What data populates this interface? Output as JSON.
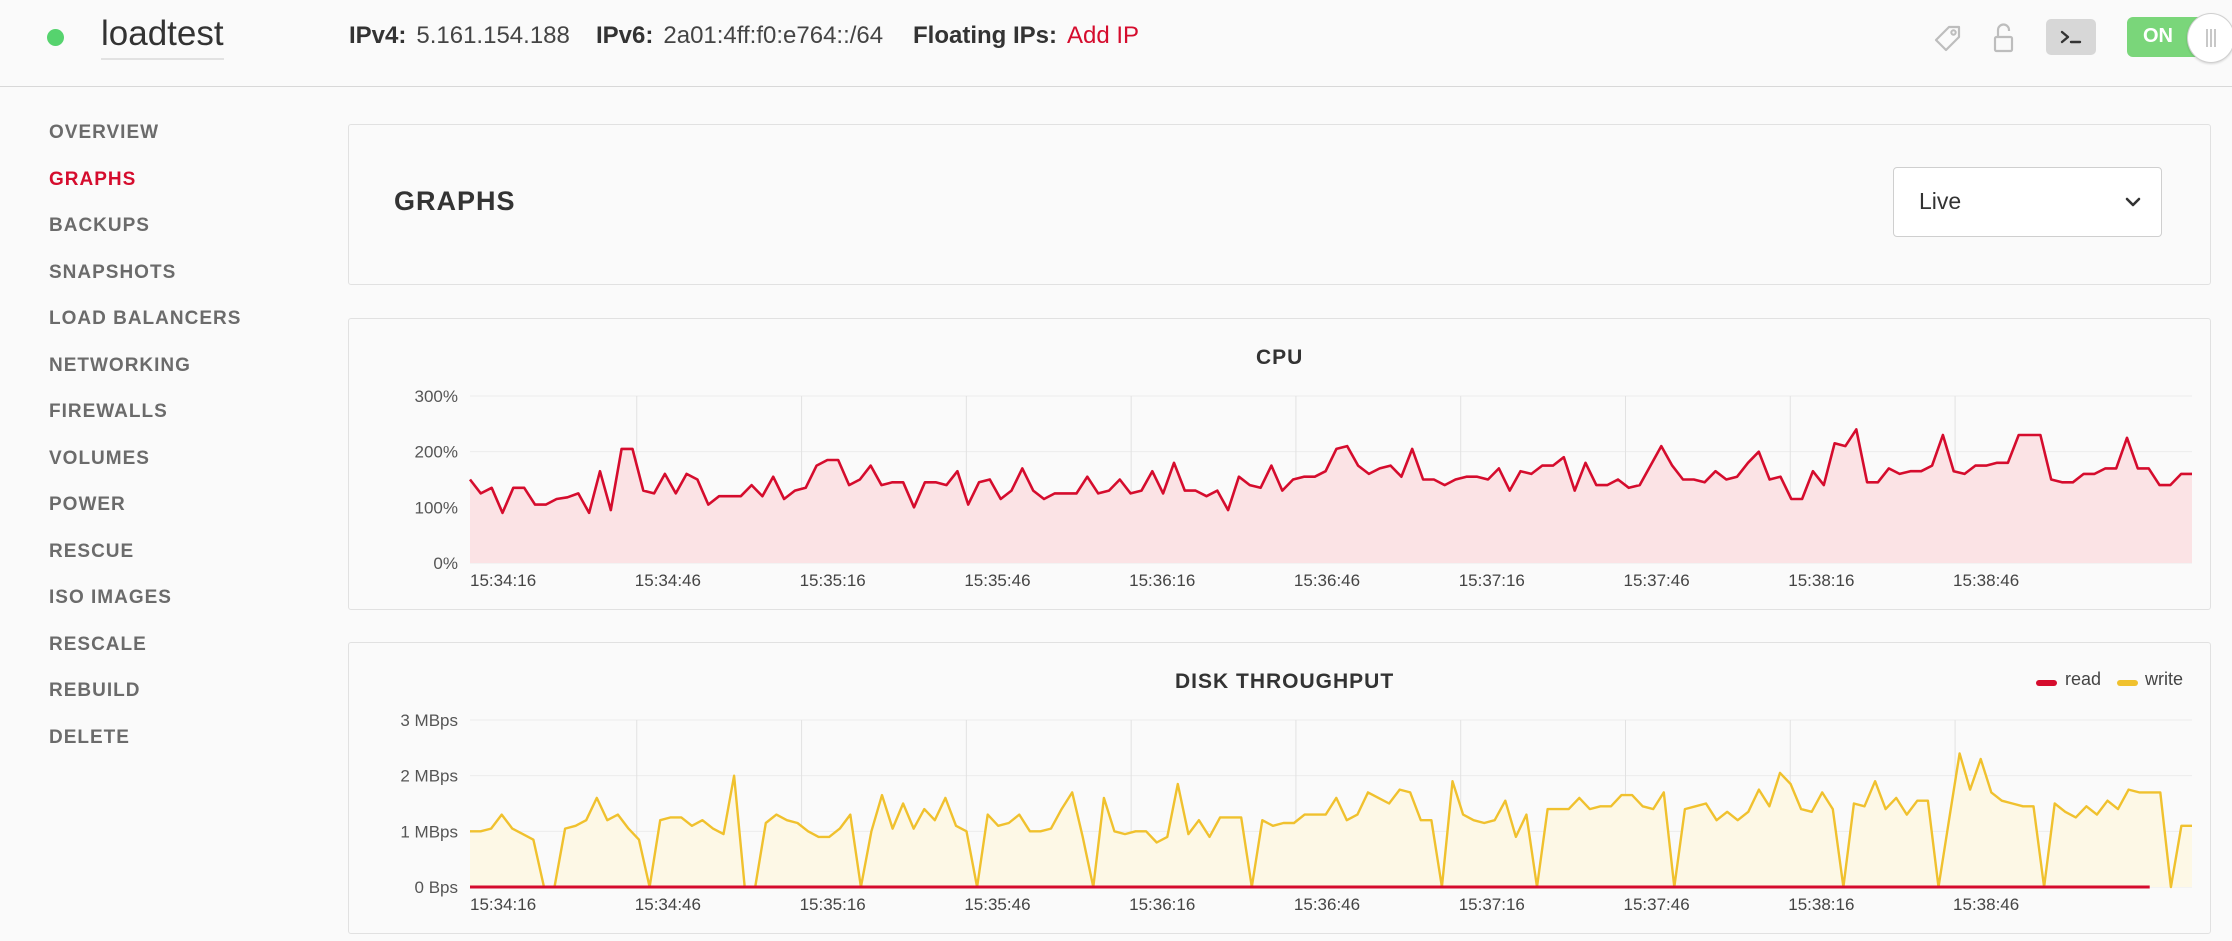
{
  "header": {
    "server_name": "loadtest",
    "status_color": "#56d36e",
    "ipv4_label": "IPv4:",
    "ipv4_value": "5.161.154.188",
    "ipv6_label": "IPv6:",
    "ipv6_value": "2a01:4ff:f0:e764::/64",
    "floating_label": "Floating IPs:",
    "floating_action": "Add IP",
    "icons": [
      "tag-icon",
      "unlock-icon",
      "console-icon"
    ],
    "power_toggle_label": "ON"
  },
  "sidebar": {
    "items": [
      {
        "label": "OVERVIEW",
        "active": false
      },
      {
        "label": "GRAPHS",
        "active": true
      },
      {
        "label": "BACKUPS",
        "active": false
      },
      {
        "label": "SNAPSHOTS",
        "active": false
      },
      {
        "label": "LOAD BALANCERS",
        "active": false
      },
      {
        "label": "NETWORKING",
        "active": false
      },
      {
        "label": "FIREWALLS",
        "active": false
      },
      {
        "label": "VOLUMES",
        "active": false
      },
      {
        "label": "POWER",
        "active": false
      },
      {
        "label": "RESCUE",
        "active": false
      },
      {
        "label": "ISO IMAGES",
        "active": false
      },
      {
        "label": "RESCALE",
        "active": false
      },
      {
        "label": "REBUILD",
        "active": false
      },
      {
        "label": "DELETE",
        "active": false
      }
    ]
  },
  "graphs": {
    "title": "GRAPHS",
    "range_selected": "Live"
  },
  "colors": {
    "accent": "#d50c2d",
    "cpu_line": "#d50c2d",
    "cpu_fill": "#fbe3e5",
    "read": "#d50c2d",
    "write": "#f0c12e",
    "write_fill": "#fdf8e6"
  },
  "chart_data": [
    {
      "type": "area",
      "title": "CPU",
      "x_ticks": [
        "15:34:16",
        "15:34:46",
        "15:35:16",
        "15:35:46",
        "15:36:16",
        "15:36:46",
        "15:37:16",
        "15:37:46",
        "15:38:16",
        "15:38:46"
      ],
      "y_ticks": [
        "0%",
        "100%",
        "200%",
        "300%"
      ],
      "ylim": [
        0,
        300
      ],
      "unit": "%",
      "grid": true,
      "series": [
        {
          "values": [
            150,
            125,
            135,
            90,
            135,
            135,
            105,
            105,
            115,
            118,
            125,
            90,
            165,
            95,
            205,
            205,
            130,
            125,
            160,
            125,
            160,
            150,
            105,
            120,
            120,
            120,
            140,
            120,
            155,
            115,
            130,
            135,
            175,
            185,
            185,
            140,
            150,
            175,
            140,
            145,
            145,
            100,
            145,
            145,
            140,
            165,
            105,
            145,
            150,
            115,
            130,
            170,
            130,
            115,
            125,
            125,
            125,
            155,
            125,
            130,
            150,
            125,
            130,
            165,
            125,
            180,
            130,
            130,
            120,
            130,
            95,
            155,
            140,
            135,
            175,
            130,
            150,
            155,
            155,
            165,
            205,
            210,
            175,
            160,
            170,
            175,
            155,
            205,
            150,
            150,
            140,
            150,
            155,
            155,
            150,
            170,
            130,
            165,
            160,
            175,
            175,
            190,
            130,
            180,
            140,
            140,
            150,
            135,
            140,
            175,
            210,
            175,
            150,
            150,
            145,
            165,
            150,
            155,
            180,
            200,
            150,
            155,
            115,
            115,
            165,
            140,
            215,
            210,
            240,
            145,
            145,
            170,
            160,
            165,
            165,
            175,
            230,
            165,
            160,
            175,
            175,
            180,
            180,
            230,
            230,
            230,
            150,
            145,
            145,
            160,
            160,
            170,
            170,
            225,
            170,
            170,
            140,
            140,
            160,
            160
          ]
        }
      ]
    },
    {
      "type": "line",
      "title": "DISK THROUGHPUT",
      "x_ticks": [
        "15:34:16",
        "15:34:46",
        "15:35:16",
        "15:35:46",
        "15:36:16",
        "15:36:46",
        "15:37:16",
        "15:37:46",
        "15:38:16",
        "15:38:46"
      ],
      "y_ticks": [
        "0 Bps",
        "1 MBps",
        "2 MBps",
        "3 MBps"
      ],
      "ylim": [
        0,
        3
      ],
      "unit": "MBps",
      "grid": true,
      "legend": "top-right",
      "series": [
        {
          "name": "read",
          "values": [
            0,
            0,
            0,
            0,
            0,
            0,
            0,
            0,
            0,
            0,
            0,
            0,
            0,
            0,
            0,
            0,
            0,
            0,
            0,
            0,
            0,
            0,
            0,
            0,
            0,
            0,
            0,
            0,
            0,
            0,
            0,
            0,
            0,
            0,
            0,
            0,
            0,
            0,
            0,
            0,
            0,
            0,
            0,
            0,
            0,
            0,
            0,
            0,
            0,
            0,
            0,
            0,
            0,
            0,
            0,
            0,
            0,
            0,
            0,
            0,
            0,
            0,
            0,
            0,
            0,
            0,
            0,
            0,
            0,
            0,
            0,
            0,
            0,
            0,
            0,
            0,
            0,
            0,
            0,
            0,
            0,
            0,
            0,
            0,
            0,
            0,
            0,
            0,
            0,
            0,
            0,
            0,
            0,
            0,
            0,
            0,
            0,
            0,
            0,
            0,
            0,
            0,
            0,
            0,
            0,
            0,
            0,
            0,
            0,
            0,
            0,
            0,
            0,
            0,
            0,
            0,
            0,
            0,
            0,
            0,
            0,
            0,
            0,
            0,
            0,
            0,
            0,
            0,
            0,
            0,
            0,
            0,
            0,
            0,
            0,
            0,
            0,
            0,
            0,
            0,
            0,
            0,
            0,
            0,
            0,
            0,
            0,
            0,
            0,
            0,
            0,
            0,
            0,
            0,
            0,
            0,
            0,
            0,
            0,
            0
          ]
        },
        {
          "name": "write",
          "values": [
            1,
            1,
            1.05,
            1.3,
            1.05,
            0.95,
            0.85,
            0,
            0,
            1.05,
            1.1,
            1.2,
            1.6,
            1.2,
            1.3,
            1.05,
            0.85,
            0,
            1.2,
            1.25,
            1.25,
            1.1,
            1.2,
            1.05,
            0.95,
            2,
            0,
            0,
            1.15,
            1.3,
            1.2,
            1.15,
            1.0,
            0.9,
            0.9,
            1.05,
            1.3,
            0,
            1.0,
            1.65,
            1.05,
            1.5,
            1.05,
            1.4,
            1.2,
            1.6,
            1.1,
            1.0,
            0,
            1.3,
            1.1,
            1.15,
            1.3,
            1.0,
            1.0,
            1.05,
            1.4,
            1.7,
            0.9,
            0,
            1.6,
            1.0,
            0.95,
            1.0,
            1.0,
            0.8,
            0.9,
            1.85,
            0.95,
            1.2,
            0.9,
            1.25,
            1.25,
            1.25,
            0,
            1.2,
            1.1,
            1.15,
            1.15,
            1.3,
            1.3,
            1.3,
            1.6,
            1.2,
            1.3,
            1.7,
            1.6,
            1.5,
            1.75,
            1.7,
            1.2,
            1.2,
            0,
            1.9,
            1.3,
            1.2,
            1.15,
            1.2,
            1.55,
            0.9,
            1.3,
            0,
            1.4,
            1.4,
            1.4,
            1.6,
            1.4,
            1.45,
            1.45,
            1.65,
            1.65,
            1.45,
            1.4,
            1.7,
            0,
            1.4,
            1.45,
            1.5,
            1.2,
            1.35,
            1.2,
            1.35,
            1.75,
            1.45,
            2.05,
            1.85,
            1.4,
            1.35,
            1.7,
            1.4,
            0,
            1.5,
            1.45,
            1.9,
            1.4,
            1.6,
            1.3,
            1.55,
            1.55,
            0,
            1.2,
            2.4,
            1.75,
            2.3,
            1.7,
            1.55,
            1.5,
            1.45,
            1.45,
            0,
            1.5,
            1.35,
            1.25,
            1.45,
            1.3,
            1.55,
            1.4,
            1.75,
            1.7,
            1.7,
            1.7,
            0,
            1.1,
            1.1
          ]
        }
      ]
    }
  ]
}
